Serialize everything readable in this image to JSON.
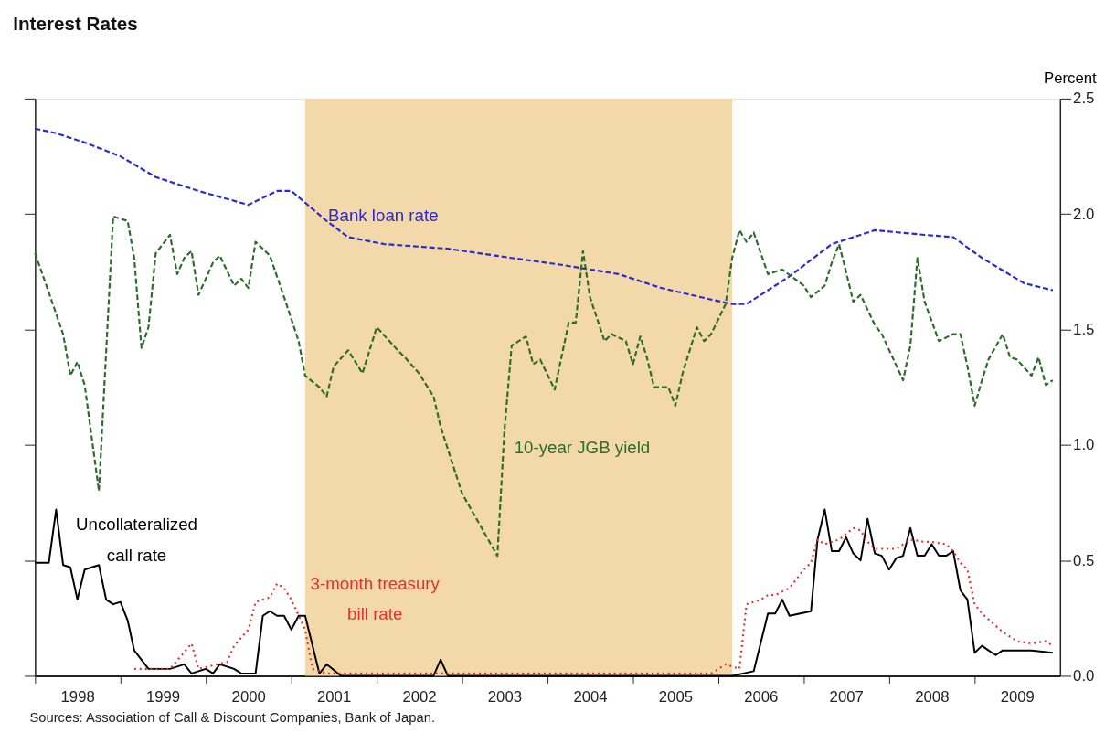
{
  "chart_data": {
    "type": "line",
    "title": "Interest Rates",
    "ylabel": "Percent",
    "xlim": [
      "1998-01",
      "2010-01"
    ],
    "xticks": [
      {
        "value": "1998-01",
        "label": null
      },
      {
        "value": "1998-07",
        "label": "1998"
      },
      {
        "value": "1999-01",
        "label": null
      },
      {
        "value": "1999-07",
        "label": "1999"
      },
      {
        "value": "2000-01",
        "label": null
      },
      {
        "value": "2000-07",
        "label": "2000"
      },
      {
        "value": "2001-01",
        "label": null
      },
      {
        "value": "2001-07",
        "label": "2001"
      },
      {
        "value": "2002-01",
        "label": null
      },
      {
        "value": "2002-07",
        "label": "2002"
      },
      {
        "value": "2003-01",
        "label": null
      },
      {
        "value": "2003-07",
        "label": "2003"
      },
      {
        "value": "2004-01",
        "label": null
      },
      {
        "value": "2004-07",
        "label": "2004"
      },
      {
        "value": "2005-01",
        "label": null
      },
      {
        "value": "2005-07",
        "label": "2005"
      },
      {
        "value": "2006-01",
        "label": null
      },
      {
        "value": "2006-07",
        "label": "2006"
      },
      {
        "value": "2007-01",
        "label": null
      },
      {
        "value": "2007-07",
        "label": "2007"
      },
      {
        "value": "2008-01",
        "label": null
      },
      {
        "value": "2008-07",
        "label": "2008"
      },
      {
        "value": "2009-01",
        "label": null
      },
      {
        "value": "2009-07",
        "label": "2009"
      }
    ],
    "ylim": [
      0,
      2.5
    ],
    "yticks": [
      {
        "value": 0,
        "label": "0.0"
      },
      {
        "value": 0.5,
        "label": "0.5"
      },
      {
        "value": 1,
        "label": "1.0"
      },
      {
        "value": 1.5,
        "label": "1.5"
      },
      {
        "value": 2,
        "label": "2.0"
      },
      {
        "value": 2.5,
        "label": "2.5"
      }
    ],
    "grid": false,
    "legend": false,
    "marker": "none",
    "bands": [
      {
        "axis": "x",
        "from": "2001-03",
        "to": "2006-03",
        "color": "#f3d9aa"
      }
    ],
    "series": [
      {
        "name": "Bank loan rate",
        "color": "#2a2ad0",
        "line_style": "dashed",
        "x": [
          "1998-01",
          "1998-04",
          "1998-08",
          "1999-01",
          "1999-06",
          "1999-12",
          "2000-07",
          "2000-11",
          "2001-01",
          "2001-06",
          "2001-09",
          "2002-02",
          "2002-11",
          "2003-08",
          "2004-03",
          "2004-11",
          "2005-05",
          "2005-12",
          "2006-03",
          "2006-05",
          "2006-11",
          "2007-05",
          "2007-11",
          "2008-06",
          "2008-10",
          "2009-02",
          "2009-08",
          "2009-12"
        ],
        "values": [
          2.37,
          2.35,
          2.31,
          2.25,
          2.16,
          2.1,
          2.04,
          2.1,
          2.1,
          1.97,
          1.9,
          1.87,
          1.85,
          1.81,
          1.78,
          1.74,
          1.68,
          1.63,
          1.61,
          1.61,
          1.73,
          1.87,
          1.93,
          1.91,
          1.9,
          1.81,
          1.7,
          1.67
        ]
      },
      {
        "name": "10-year JGB yield",
        "color": "#2e6b2e",
        "line_style": "dashed",
        "x": [
          "1998-01",
          "1998-03",
          "1998-05",
          "1998-06",
          "1998-07",
          "1998-08",
          "1998-10",
          "1998-12",
          "1999-02",
          "1999-03",
          "1999-04",
          "1999-05",
          "1999-06",
          "1999-08",
          "1999-09",
          "1999-10",
          "1999-11",
          "1999-12",
          "2000-02",
          "2000-03",
          "2000-05",
          "2000-06",
          "2000-07",
          "2000-08",
          "2000-10",
          "2000-12",
          "2001-02",
          "2001-03",
          "2001-05",
          "2001-06",
          "2001-07",
          "2001-09",
          "2001-11",
          "2002-01",
          "2002-04",
          "2002-05",
          "2002-07",
          "2002-09",
          "2002-10",
          "2003-01",
          "2003-06",
          "2003-07",
          "2003-08",
          "2003-10",
          "2003-11",
          "2003-12",
          "2004-02",
          "2004-03",
          "2004-04",
          "2004-05",
          "2004-06",
          "2004-07",
          "2004-09",
          "2004-10",
          "2004-12",
          "2005-01",
          "2005-02",
          "2005-03",
          "2005-04",
          "2005-06",
          "2005-07",
          "2005-08",
          "2005-10",
          "2005-11",
          "2005-12",
          "2006-02",
          "2006-03",
          "2006-04",
          "2006-05",
          "2006-06",
          "2006-08",
          "2006-10",
          "2007-01",
          "2007-02",
          "2007-04",
          "2007-05",
          "2007-06",
          "2007-07",
          "2007-08",
          "2007-09",
          "2007-11",
          "2007-12",
          "2008-03",
          "2008-04",
          "2008-05",
          "2008-06",
          "2008-08",
          "2008-10",
          "2008-11",
          "2008-12",
          "2009-01",
          "2009-02",
          "2009-03",
          "2009-05",
          "2009-06",
          "2009-07",
          "2009-09",
          "2009-10",
          "2009-11",
          "2009-12"
        ],
        "values": [
          1.83,
          1.66,
          1.48,
          1.3,
          1.36,
          1.26,
          0.8,
          1.99,
          1.97,
          1.81,
          1.42,
          1.51,
          1.83,
          1.91,
          1.74,
          1.81,
          1.84,
          1.65,
          1.79,
          1.82,
          1.69,
          1.72,
          1.68,
          1.88,
          1.82,
          1.64,
          1.45,
          1.3,
          1.25,
          1.21,
          1.34,
          1.41,
          1.31,
          1.51,
          1.41,
          1.38,
          1.31,
          1.21,
          1.08,
          0.79,
          0.52,
          1.06,
          1.43,
          1.47,
          1.35,
          1.37,
          1.24,
          1.38,
          1.53,
          1.53,
          1.84,
          1.64,
          1.45,
          1.48,
          1.45,
          1.35,
          1.47,
          1.38,
          1.25,
          1.25,
          1.17,
          1.31,
          1.51,
          1.45,
          1.48,
          1.61,
          1.81,
          1.93,
          1.88,
          1.92,
          1.74,
          1.76,
          1.69,
          1.64,
          1.69,
          1.79,
          1.87,
          1.75,
          1.62,
          1.65,
          1.52,
          1.48,
          1.28,
          1.43,
          1.81,
          1.62,
          1.45,
          1.48,
          1.48,
          1.34,
          1.17,
          1.28,
          1.37,
          1.48,
          1.38,
          1.37,
          1.3,
          1.38,
          1.26,
          1.28
        ]
      },
      {
        "name": "Uncollateralized call rate",
        "color": "#000000",
        "line_style": "solid",
        "x": [
          "1998-01",
          "1998-03",
          "1998-04",
          "1998-05",
          "1998-06",
          "1998-07",
          "1998-08",
          "1998-10",
          "1998-11",
          "1998-12",
          "1999-01",
          "1999-02",
          "1999-03",
          "1999-05",
          "1999-08",
          "1999-10",
          "1999-11",
          "2000-01",
          "2000-02",
          "2000-03",
          "2000-05",
          "2000-06",
          "2000-08",
          "2000-09",
          "2000-10",
          "2000-11",
          "2000-12",
          "2001-01",
          "2001-02",
          "2001-03",
          "2001-05",
          "2001-06",
          "2001-08",
          "2002-09",
          "2002-10",
          "2002-11",
          "2006-03",
          "2006-06",
          "2006-08",
          "2006-09",
          "2006-10",
          "2006-11",
          "2007-02",
          "2007-03",
          "2007-04",
          "2007-05",
          "2007-06",
          "2007-07",
          "2007-08",
          "2007-09",
          "2007-10",
          "2007-11",
          "2007-12",
          "2008-01",
          "2008-02",
          "2008-03",
          "2008-04",
          "2008-05",
          "2008-06",
          "2008-07",
          "2008-08",
          "2008-09",
          "2008-10",
          "2008-11",
          "2008-12",
          "2009-01",
          "2009-02",
          "2009-03",
          "2009-04",
          "2009-05",
          "2009-09",
          "2009-12"
        ],
        "values": [
          0.49,
          0.49,
          0.72,
          0.48,
          0.47,
          0.33,
          0.46,
          0.48,
          0.33,
          0.31,
          0.32,
          0.24,
          0.11,
          0.03,
          0.03,
          0.05,
          0.01,
          0.03,
          0.01,
          0.05,
          0.03,
          0.01,
          0.01,
          0.26,
          0.28,
          0.26,
          0.26,
          0.2,
          0.26,
          0.26,
          0.01,
          0.05,
          0.0,
          0.0,
          0.07,
          0.0,
          0.0,
          0.02,
          0.27,
          0.27,
          0.33,
          0.26,
          0.28,
          0.59,
          0.72,
          0.54,
          0.54,
          0.6,
          0.53,
          0.5,
          0.68,
          0.53,
          0.52,
          0.46,
          0.51,
          0.52,
          0.64,
          0.52,
          0.52,
          0.57,
          0.52,
          0.52,
          0.54,
          0.37,
          0.33,
          0.1,
          0.13,
          0.11,
          0.09,
          0.11,
          0.11,
          0.1
        ]
      },
      {
        "name": "3-month treasury bill rate",
        "color": "#e8302a",
        "line_style": "dotted",
        "x": [
          "1999-03",
          "1999-08",
          "1999-11",
          "1999-12",
          "2000-04",
          "2000-05",
          "2000-07",
          "2000-08",
          "2000-10",
          "2000-11",
          "2000-12",
          "2001-01",
          "2001-03",
          "2001-04",
          "2001-06",
          "2003-06",
          "2005-12",
          "2006-02",
          "2006-04",
          "2006-05",
          "2006-07",
          "2006-08",
          "2006-09",
          "2006-11",
          "2007-01",
          "2007-02",
          "2007-03",
          "2007-04",
          "2007-06",
          "2007-08",
          "2007-09",
          "2007-10",
          "2007-11",
          "2008-01",
          "2008-02",
          "2008-04",
          "2008-06",
          "2008-07",
          "2008-09",
          "2008-10",
          "2008-11",
          "2008-12",
          "2009-01",
          "2009-02",
          "2009-05",
          "2009-07",
          "2009-09",
          "2009-11",
          "2009-12"
        ],
        "values": [
          0.03,
          0.03,
          0.14,
          0.03,
          0.06,
          0.13,
          0.2,
          0.32,
          0.34,
          0.4,
          0.38,
          0.33,
          0.2,
          0.03,
          0.01,
          0.01,
          0.01,
          0.05,
          0.03,
          0.31,
          0.33,
          0.35,
          0.35,
          0.38,
          0.46,
          0.49,
          0.59,
          0.57,
          0.59,
          0.64,
          0.63,
          0.58,
          0.55,
          0.55,
          0.55,
          0.59,
          0.58,
          0.58,
          0.57,
          0.54,
          0.49,
          0.46,
          0.31,
          0.27,
          0.19,
          0.15,
          0.14,
          0.15,
          0.13
        ]
      }
    ],
    "annotations": [
      "Sources:  Association of Call & Discount Companies, Bank of Japan."
    ]
  }
}
